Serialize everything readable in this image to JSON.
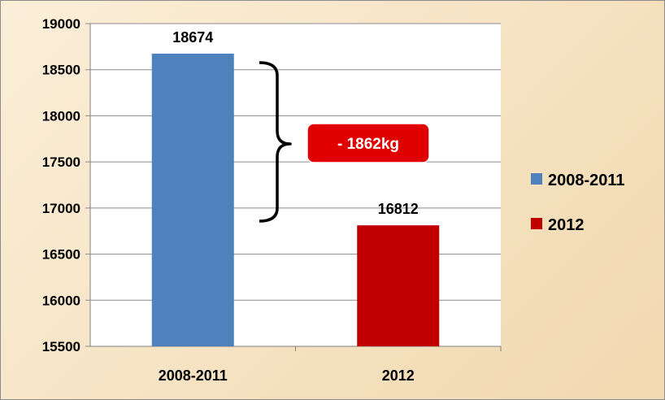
{
  "chart_data": {
    "type": "bar",
    "categories": [
      "2008-2011",
      "2012"
    ],
    "values": [
      18674,
      16812
    ],
    "data_labels": [
      "18674",
      "16812"
    ],
    "colors": [
      "#4f81bd",
      "#c00000"
    ],
    "ylim": [
      15500,
      19000
    ],
    "yticks": [
      "15500",
      "16000",
      "16500",
      "17000",
      "17500",
      "18000",
      "18500",
      "19000"
    ],
    "grid": "horizontal",
    "legend": {
      "placement": "right",
      "entries": [
        "2008-2011",
        "2012"
      ]
    },
    "annotation": {
      "text": "- 1862kg",
      "color": "#e00000"
    }
  }
}
